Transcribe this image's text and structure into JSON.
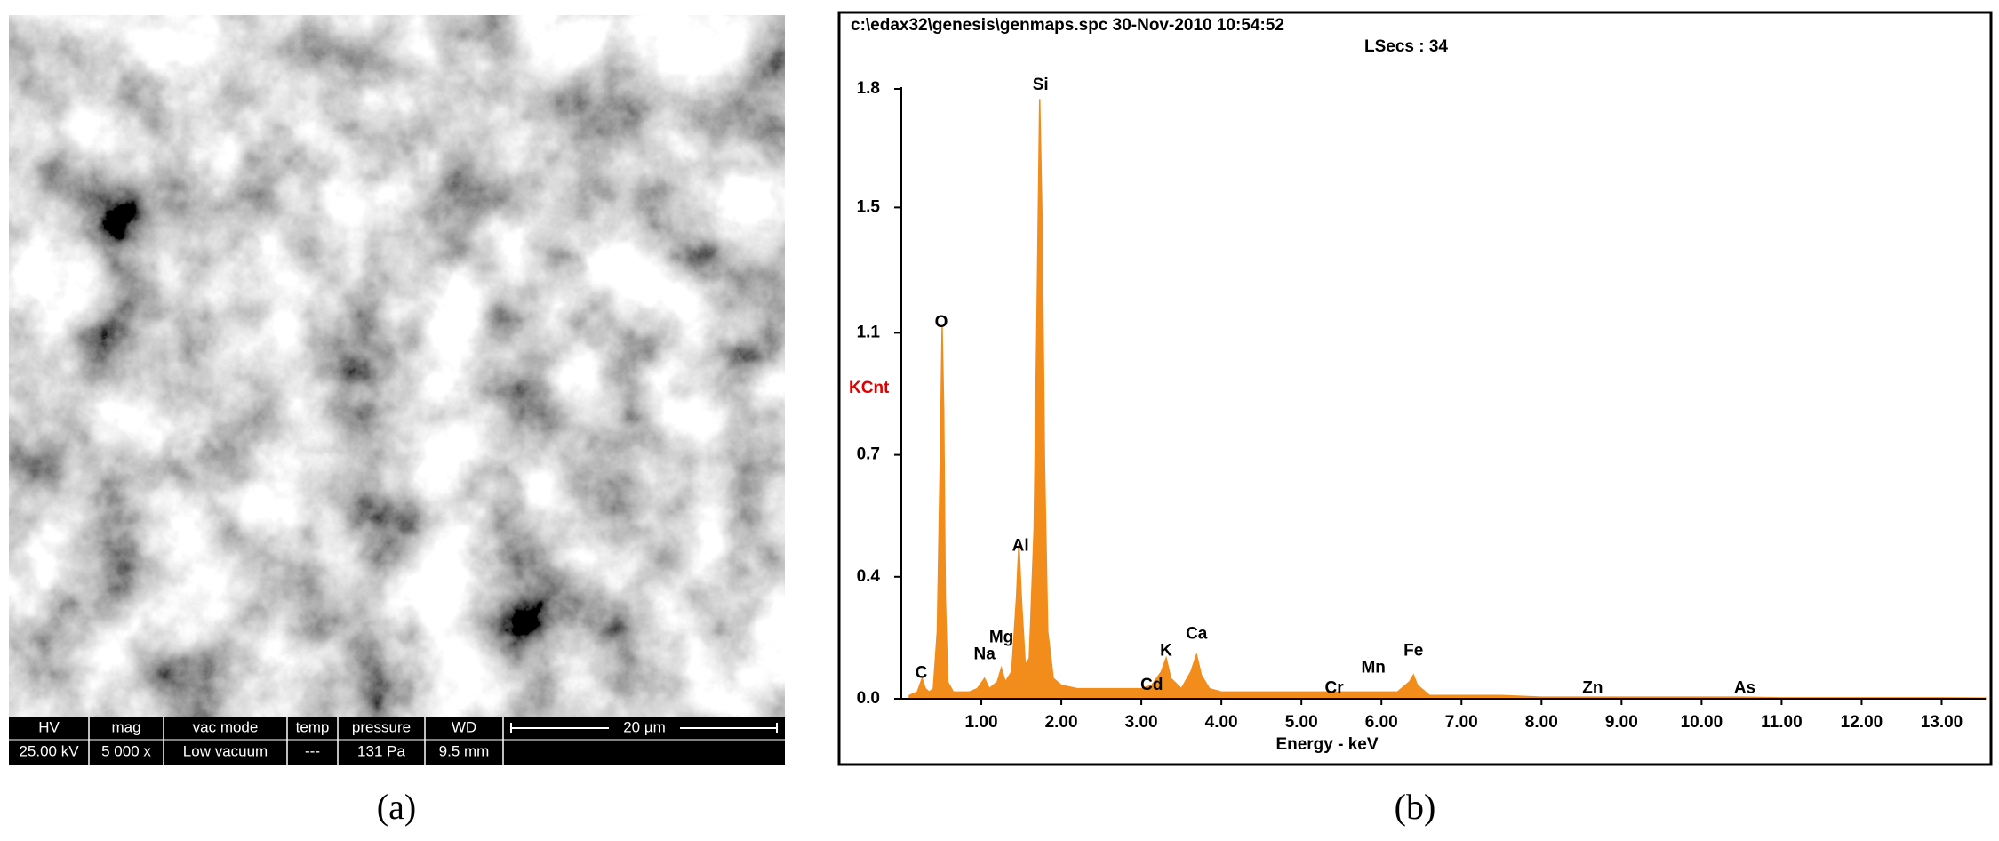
{
  "sem_image": {
    "info_headers": [
      "HV",
      "mag",
      "vac mode",
      "temp",
      "pressure",
      "WD"
    ],
    "info_values": [
      "25.00 kV",
      "5 000 x",
      "Low vacuum",
      "---",
      "131 Pa",
      "9.5 mm"
    ],
    "scale_bar": "20 µm",
    "label": "(a)"
  },
  "chart_label": "(b)",
  "chart_data": {
    "type": "area",
    "header": "c:\\edax32\\genesis\\genmaps.spc  30-Nov-2010 10:54:52",
    "subheader": "LSecs :  34",
    "ylabel": "KCnt",
    "xlabel": "Energy - keV",
    "color": "#f28c1a",
    "x": [
      0.1,
      0.2,
      0.26,
      0.3,
      0.35,
      0.4,
      0.45,
      0.49,
      0.51,
      0.53,
      0.55,
      0.58,
      0.65,
      0.75,
      0.85,
      0.95,
      1.04,
      1.1,
      1.2,
      1.25,
      1.3,
      1.38,
      1.44,
      1.47,
      1.5,
      1.55,
      1.6,
      1.66,
      1.7,
      1.73,
      1.76,
      1.79,
      1.83,
      1.9,
      2.0,
      2.2,
      2.5,
      2.8,
      3.0,
      3.13,
      3.25,
      3.31,
      3.37,
      3.5,
      3.62,
      3.69,
      3.75,
      3.85,
      4.0,
      4.5,
      5.0,
      5.41,
      5.9,
      6.2,
      6.35,
      6.4,
      6.45,
      6.6,
      7.06,
      7.5,
      8.0,
      8.64,
      9.0,
      10.0,
      10.5,
      11.0,
      12.0,
      13.0,
      13.55
    ],
    "values": [
      0.01,
      0.02,
      0.06,
      0.03,
      0.02,
      0.03,
      0.2,
      0.75,
      1.1,
      0.85,
      0.3,
      0.05,
      0.02,
      0.02,
      0.02,
      0.03,
      0.06,
      0.03,
      0.05,
      0.09,
      0.05,
      0.08,
      0.3,
      0.46,
      0.3,
      0.1,
      0.12,
      0.5,
      1.2,
      1.77,
      1.4,
      0.7,
      0.2,
      0.06,
      0.04,
      0.03,
      0.03,
      0.03,
      0.03,
      0.04,
      0.08,
      0.12,
      0.06,
      0.03,
      0.08,
      0.13,
      0.07,
      0.03,
      0.02,
      0.02,
      0.02,
      0.02,
      0.02,
      0.02,
      0.05,
      0.07,
      0.04,
      0.01,
      0.01,
      0.01,
      0.005,
      0.005,
      0.005,
      0.005,
      0.005,
      0.003,
      0.003,
      0.003,
      0.002
    ],
    "xlim": [
      0,
      13.55
    ],
    "ylim": [
      0,
      1.8
    ],
    "xticks": [
      {
        "value": 1,
        "label": "1.00"
      },
      {
        "value": 2,
        "label": "2.00"
      },
      {
        "value": 3,
        "label": "3.00"
      },
      {
        "value": 4,
        "label": "4.00"
      },
      {
        "value": 5,
        "label": "5.00"
      },
      {
        "value": 6,
        "label": "6.00"
      },
      {
        "value": 7,
        "label": "7.00"
      },
      {
        "value": 8,
        "label": "8.00"
      },
      {
        "value": 9,
        "label": "9.00"
      },
      {
        "value": 10,
        "label": "10.00"
      },
      {
        "value": 11,
        "label": "11.00"
      },
      {
        "value": 12,
        "label": "12.00"
      },
      {
        "value": 13,
        "label": "13.00"
      }
    ],
    "yticks": [
      {
        "value": 0,
        "label": "0.0"
      },
      {
        "value": 0.36,
        "label": "0.4"
      },
      {
        "value": 0.72,
        "label": "0.7"
      },
      {
        "value": 1.08,
        "label": "1.1"
      },
      {
        "value": 1.45,
        "label": "1.5"
      },
      1.8
    ],
    "annotations": [
      {
        "text": "C",
        "x": 0.25,
        "y": 0.075
      },
      {
        "text": "O",
        "x": 0.5,
        "y": 1.11
      },
      {
        "text": "Na",
        "x": 1.04,
        "y": 0.13
      },
      {
        "text": "Mg",
        "x": 1.25,
        "y": 0.18
      },
      {
        "text": "Al",
        "x": 1.49,
        "y": 0.45
      },
      {
        "text": "Si",
        "x": 1.74,
        "y": 1.81
      },
      {
        "text": "Cd",
        "x": 3.13,
        "y": 0.04
      },
      {
        "text": "K",
        "x": 3.31,
        "y": 0.14
      },
      {
        "text": "Ca",
        "x": 3.69,
        "y": 0.19
      },
      {
        "text": "Cr",
        "x": 5.41,
        "y": 0.03
      },
      {
        "text": "Mn",
        "x": 5.9,
        "y": 0.09
      },
      {
        "text": "Fe",
        "x": 6.4,
        "y": 0.14
      },
      {
        "text": "Zn",
        "x": 8.64,
        "y": 0.03
      },
      {
        "text": "As",
        "x": 10.54,
        "y": 0.03
      }
    ]
  }
}
